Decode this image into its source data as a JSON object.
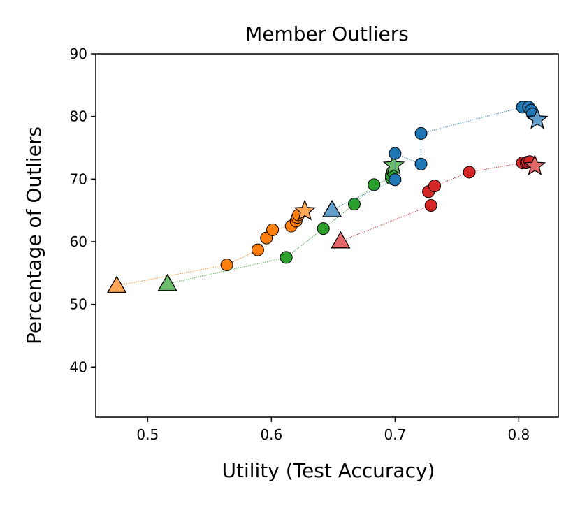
{
  "chart_data": {
    "type": "scatter",
    "title": "Member Outliers",
    "xlabel": "Utility (Test Accuracy)",
    "ylabel": "Percentage of Outliers",
    "xlim": [
      0.458,
      0.832
    ],
    "ylim": [
      32,
      90
    ],
    "x_ticks": [
      "0.5",
      "0.6",
      "0.7",
      "0.8"
    ],
    "y_ticks": [
      "40",
      "50",
      "60",
      "70",
      "80",
      "90"
    ],
    "x_tick_values": [
      0.5,
      0.6,
      0.7,
      0.8
    ],
    "y_tick_values": [
      40,
      50,
      60,
      70,
      80,
      90
    ],
    "grid": false,
    "series": [
      {
        "color": "#ff7f0e",
        "start": [
          0.475,
          53.0
        ],
        "points": [
          [
            0.564,
            56.3
          ],
          [
            0.589,
            58.7
          ],
          [
            0.596,
            60.6
          ],
          [
            0.601,
            61.9
          ],
          [
            0.616,
            62.5
          ],
          [
            0.62,
            63.3
          ],
          [
            0.621,
            63.9
          ],
          [
            0.622,
            64.3
          ]
        ],
        "end": [
          0.627,
          64.9
        ]
      },
      {
        "color": "#2ca02c",
        "start": [
          0.516,
          53.3
        ],
        "points": [
          [
            0.612,
            57.5
          ],
          [
            0.642,
            62.1
          ],
          [
            0.667,
            66.0
          ],
          [
            0.683,
            69.1
          ],
          [
            0.697,
            70.1
          ],
          [
            0.697,
            70.6
          ],
          [
            0.698,
            71.2
          ]
        ],
        "end": [
          0.699,
          72.2
        ]
      },
      {
        "color": "#1f77b4",
        "start": [
          0.649,
          65.1
        ],
        "points": [
          [
            0.7,
            69.9
          ],
          [
            0.7,
            74.1
          ],
          [
            0.721,
            72.4
          ],
          [
            0.721,
            77.3
          ],
          [
            0.803,
            81.5
          ],
          [
            0.808,
            81.5
          ],
          [
            0.81,
            81.0
          ],
          [
            0.811,
            80.4
          ]
        ],
        "end": [
          0.815,
          79.5
        ]
      },
      {
        "color": "#d62728",
        "start": [
          0.656,
          60.1
        ],
        "points": [
          [
            0.729,
            65.8
          ],
          [
            0.727,
            68.0
          ],
          [
            0.732,
            68.9
          ],
          [
            0.76,
            71.1
          ],
          [
            0.803,
            72.6
          ],
          [
            0.806,
            72.6
          ],
          [
            0.807,
            72.7
          ],
          [
            0.809,
            72.8
          ]
        ],
        "end": [
          0.813,
          72.1
        ]
      }
    ]
  }
}
